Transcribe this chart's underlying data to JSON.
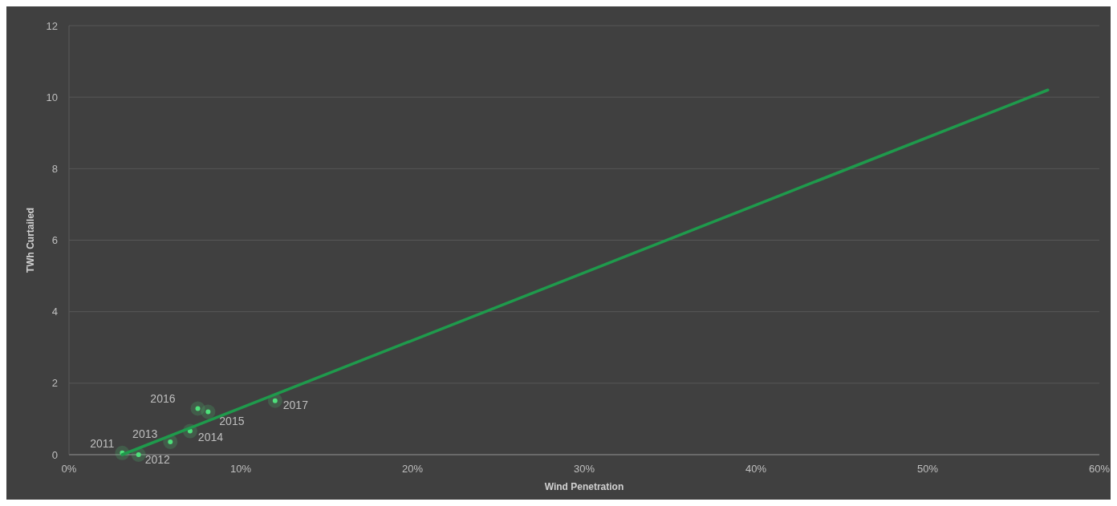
{
  "chart_data": {
    "type": "scatter",
    "xlabel": "Wind Penetration",
    "ylabel": "TWh Curtailed",
    "xlim": [
      0,
      60
    ],
    "xticks": [
      {
        "value": 0,
        "label": "0%"
      },
      {
        "value": 10,
        "label": "10%"
      },
      {
        "value": 20,
        "label": "20%"
      },
      {
        "value": 30,
        "label": "30%"
      },
      {
        "value": 40,
        "label": "40%"
      },
      {
        "value": 50,
        "label": "50%"
      },
      {
        "value": 60,
        "label": "60%"
      }
    ],
    "ylim": [
      0,
      12
    ],
    "yticks": [
      0,
      2,
      4,
      6,
      8,
      10,
      12
    ],
    "grid": "y",
    "series": [
      {
        "marker": "circle",
        "color": "#4ee07a",
        "x": [
          3.1,
          4.05,
          5.9,
          7.05,
          8.1,
          7.5,
          12.0
        ],
        "values": [
          0.05,
          0.0,
          0.36,
          0.66,
          1.2,
          1.29,
          1.51
        ]
      },
      {
        "type": "line",
        "color": "#1f9a4c",
        "x": [
          3.1,
          57.0
        ],
        "values": [
          0.0,
          10.2
        ]
      }
    ],
    "annotations": [
      {
        "text": "2011",
        "x": 3.1,
        "y": 0.05
      },
      {
        "text": "2012",
        "x": 4.05,
        "y": 0.0
      },
      {
        "text": "2013",
        "x": 5.9,
        "y": 0.36
      },
      {
        "text": "2014",
        "x": 7.05,
        "y": 0.66
      },
      {
        "text": "2015",
        "x": 8.1,
        "y": 1.2
      },
      {
        "text": "2016",
        "x": 7.5,
        "y": 1.29
      },
      {
        "text": "2017",
        "x": 12.0,
        "y": 1.51
      }
    ]
  }
}
